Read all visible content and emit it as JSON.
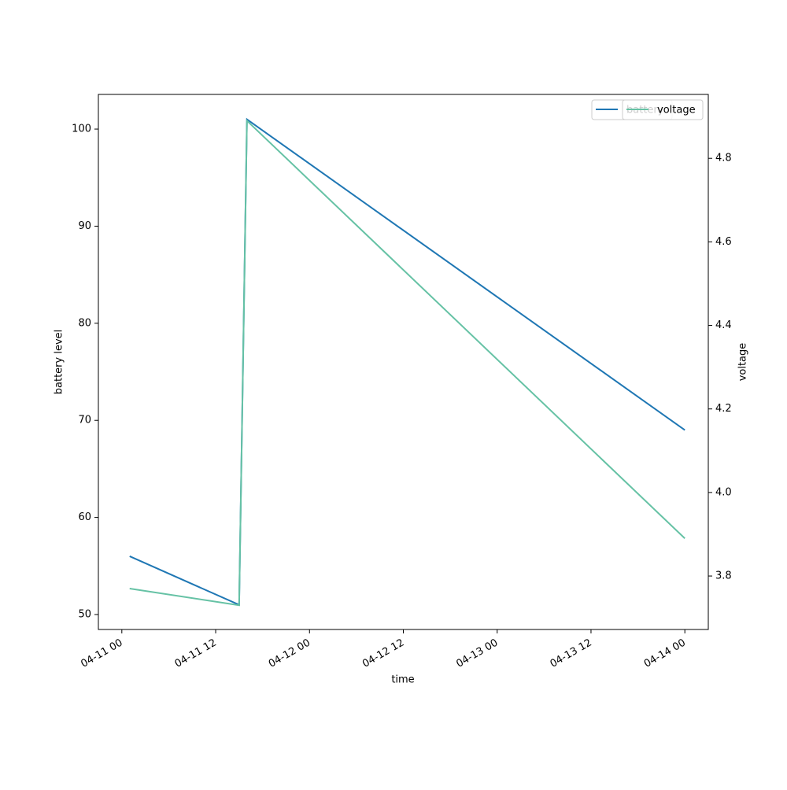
{
  "chart_data": {
    "type": "line",
    "x_label": "time",
    "y_label": "battery level",
    "y2_label": "voltage",
    "x": [
      "04-11 01",
      "04-11 15",
      "04-11 16",
      "04-14 00"
    ],
    "xlim": [
      "04-10 21",
      "04-14 03"
    ],
    "xticks": [
      "04-11 00",
      "04-11 12",
      "04-12 00",
      "04-12 12",
      "04-13 00",
      "04-13 12",
      "04-14 00"
    ],
    "ylim": [
      48.46,
      103.57
    ],
    "yticks": [
      50,
      60,
      70,
      80,
      90,
      100
    ],
    "y2lim": [
      3.672,
      4.953
    ],
    "y2ticks": [
      3.8,
      {
        "value": 4,
        "label": "4.0"
      },
      4.2,
      4.4,
      4.6,
      4.8
    ],
    "legend": "upper right",
    "grid": false,
    "series": [
      {
        "name": "battery",
        "color": "#1f77b4",
        "values": [
          56,
          51,
          101,
          69
        ]
      },
      {
        "name": "voltage",
        "color": "#66c2a5",
        "values": [
          3.77,
          3.73,
          4.89,
          3.89
        ],
        "axis": "y2"
      }
    ]
  }
}
